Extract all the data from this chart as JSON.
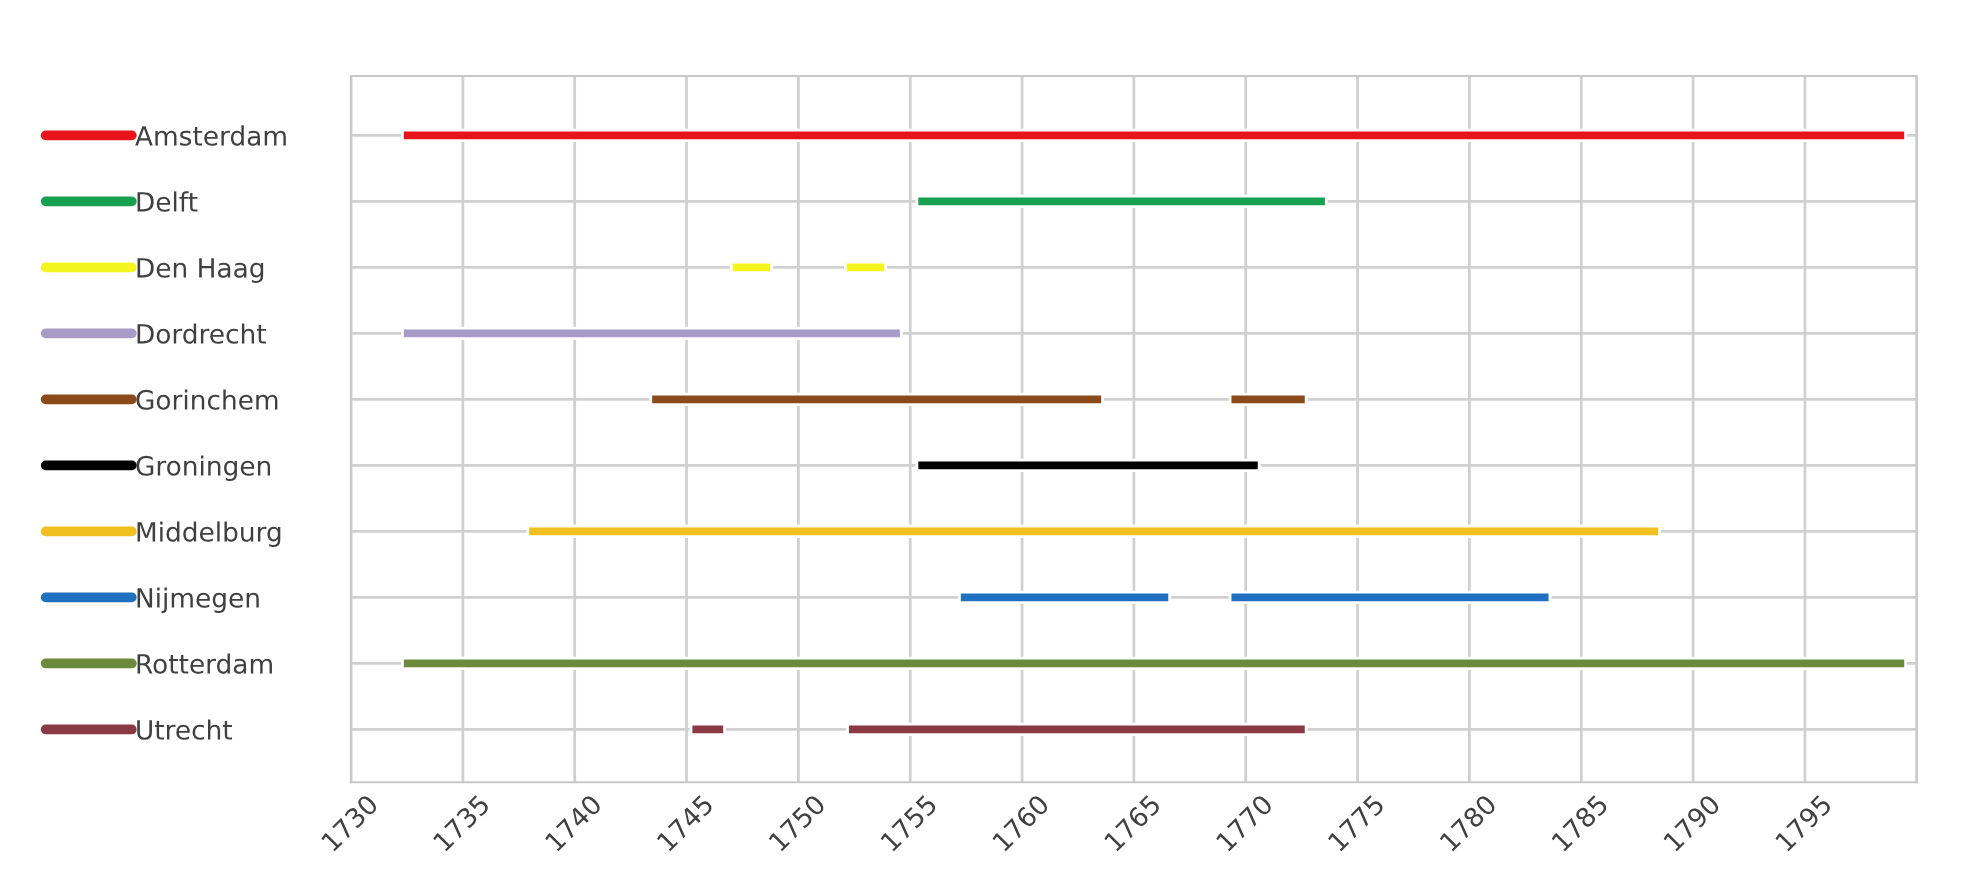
{
  "chart_data": {
    "type": "bar",
    "orientation": "horizontal",
    "categories": [
      "Amsterdam",
      "Delft",
      "Den Haag",
      "Dordrecht",
      "Gorinchem",
      "Groningen",
      "Middelburg",
      "Nijmegen",
      "Rotterdam",
      "Utrecht"
    ],
    "series": [
      {
        "colors": [
          "#e8141c",
          "#16a050",
          "#f5f51e",
          "#a99bc8",
          "#8b4a1a",
          "#000000",
          "#f0c020",
          "#1f70c0",
          "#6b8a3c",
          "#8b3a44"
        ],
        "base": [
          1732.3,
          1755.3,
          1747.0,
          1732.3,
          1743.4,
          1755.3,
          1737.9,
          1757.2,
          1732.3,
          1745.2
        ],
        "values": [
          67.2,
          18.3,
          1.8,
          22.3,
          20.2,
          15.3,
          50.6,
          9.4,
          67.2,
          1.5
        ]
      },
      {
        "colors": [
          "#e8141c",
          "#16a050",
          "#f5f51e",
          "#a99bc8",
          "#8b4a1a",
          "#000000",
          "#f0c020",
          "#1f70c0",
          "#6b8a3c",
          "#8b3a44"
        ],
        "base": [
          null,
          null,
          1752.1,
          null,
          1769.3,
          null,
          null,
          1769.3,
          null,
          1752.2
        ],
        "values": [
          null,
          null,
          1.8,
          null,
          3.4,
          null,
          null,
          14.3,
          null,
          20.5
        ]
      }
    ],
    "xlim": [
      1730,
      1800
    ],
    "xticks": [
      1730,
      1735,
      1740,
      1745,
      1750,
      1755,
      1760,
      1765,
      1770,
      1775,
      1780,
      1785,
      1790,
      1795,
      {
        "value": 1800,
        "label": null
      }
    ],
    "grid": true,
    "legend": false
  }
}
